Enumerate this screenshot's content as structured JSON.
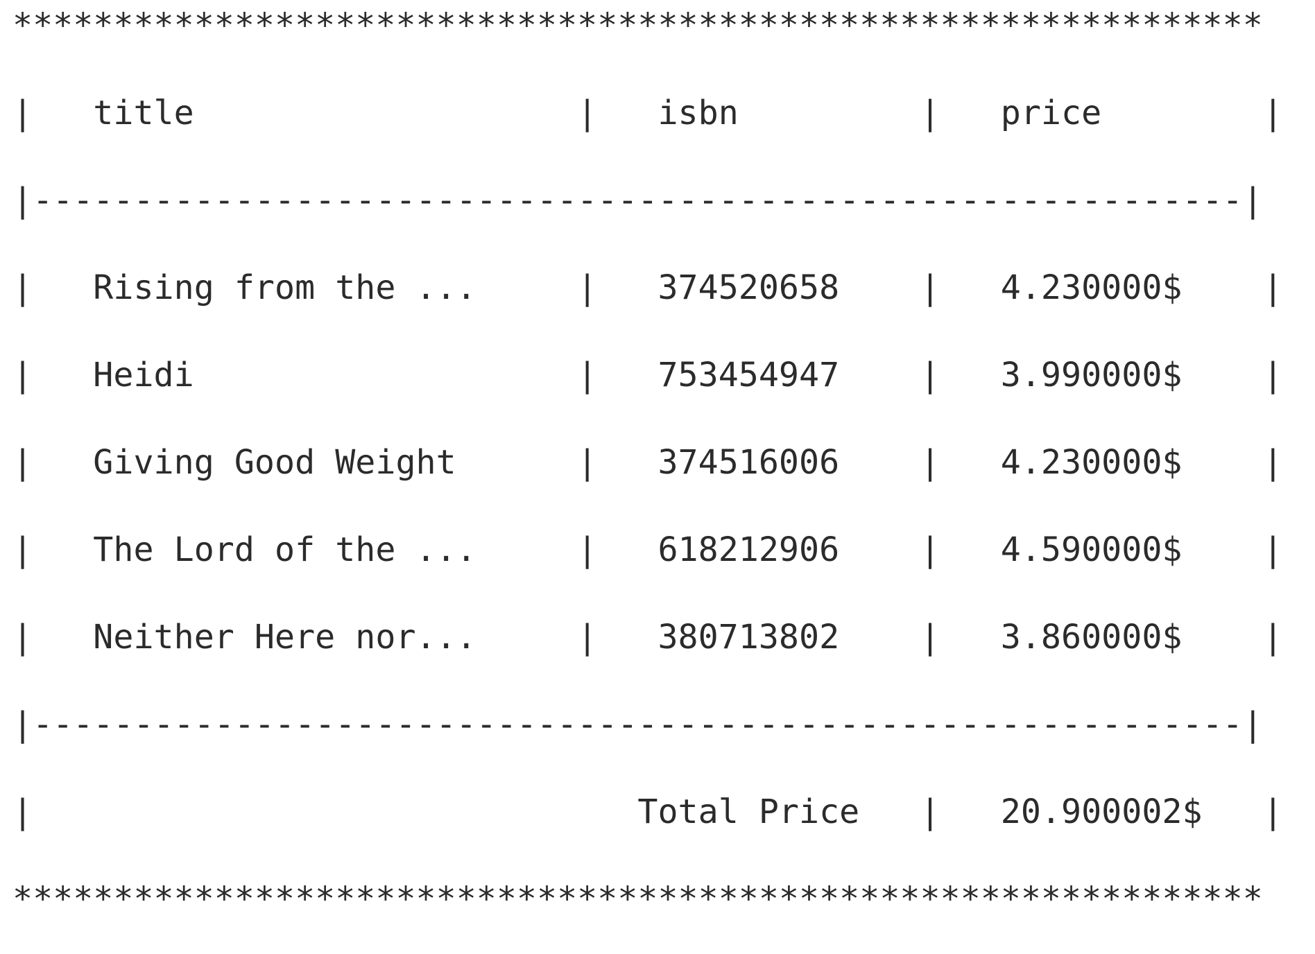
{
  "report": {
    "border_char": "*",
    "border_width": 62,
    "separator_char": "-",
    "headers": {
      "title": "title",
      "isbn": "isbn",
      "price": "price"
    },
    "rows": [
      {
        "title": "Rising from the ...",
        "isbn": "374520658",
        "price": "4.230000$"
      },
      {
        "title": "Heidi",
        "isbn": "753454947",
        "price": "3.990000$"
      },
      {
        "title": "Giving Good Weight",
        "isbn": "374516006",
        "price": "4.230000$"
      },
      {
        "title": "The Lord of the ...",
        "isbn": "618212906",
        "price": "4.590000$"
      },
      {
        "title": "Neither Here nor...",
        "isbn": "380713802",
        "price": "3.860000$"
      }
    ],
    "total_label": "Total Price",
    "total_value": "20.900002$",
    "text_color": "#2b2b2b"
  }
}
